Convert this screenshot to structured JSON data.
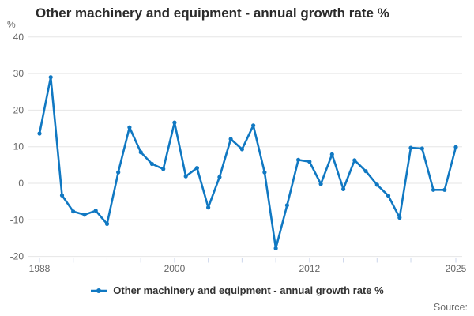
{
  "title": "Other machinery and equipment - annual growth rate %",
  "y_axis_unit": "%",
  "legend": {
    "items": [
      {
        "label": "Other machinery and equipment - annual growth rate %",
        "color": "#1078c2"
      }
    ]
  },
  "source": {
    "label": "Source:"
  },
  "colors": {
    "line": "#1078c2",
    "marker": "#1078c2",
    "gridline": "#e6e6e6",
    "axis_line": "#ccd6eb",
    "tick_label": "#666666",
    "title_text": "#2b2b2b",
    "legend_text": "#333333",
    "source_text": "#6e6e6e",
    "background": "#ffffff"
  },
  "chart_data": {
    "type": "line",
    "title": "Other machinery and equipment - annual growth rate %",
    "xlabel": "",
    "ylabel": "%",
    "ylim": [
      -20,
      40
    ],
    "grid": "horizontal-only",
    "legend_position": "bottom-center",
    "x": [
      1988,
      1989,
      1990,
      1991,
      1992,
      1993,
      1994,
      1995,
      1996,
      1997,
      1998,
      1999,
      2000,
      2001,
      2002,
      2003,
      2004,
      2005,
      2006,
      2007,
      2008,
      2009,
      2010,
      2011,
      2012,
      2013,
      2014,
      2015,
      2016,
      2017,
      2018,
      2019,
      2020,
      2021,
      2022,
      2023,
      2024,
      2025
    ],
    "series": [
      {
        "name": "Other machinery and equipment - annual growth rate %",
        "values": [
          13.6,
          29.0,
          -3.3,
          -7.7,
          -8.6,
          -7.5,
          -11.1,
          3.0,
          15.3,
          8.5,
          5.3,
          3.9,
          16.6,
          1.9,
          4.2,
          -6.6,
          1.7,
          12.1,
          9.3,
          15.8,
          3.0,
          -17.8,
          -6.0,
          6.4,
          5.9,
          -0.2,
          7.9,
          -1.6,
          6.3,
          3.3,
          -0.4,
          -3.4,
          -9.4,
          9.7,
          9.5,
          -1.8,
          -1.8,
          9.9
        ]
      }
    ],
    "y_ticks": [
      40,
      30,
      20,
      10,
      0,
      -10,
      -20
    ],
    "x_ticks": [
      1988,
      1991,
      1994,
      1997,
      2000,
      2003,
      2006,
      2009,
      2012,
      2015,
      2018,
      2021,
      2025
    ],
    "x_tick_labels": [
      "1988",
      "2000",
      "2012",
      "2025"
    ]
  }
}
